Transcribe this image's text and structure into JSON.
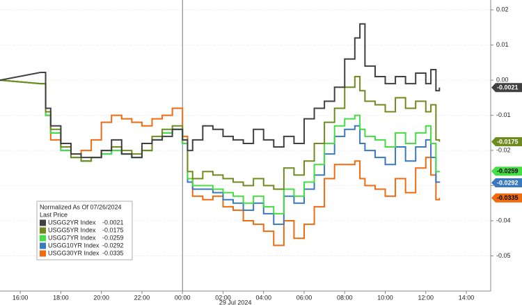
{
  "chart_data": {
    "type": "line",
    "x": [
      15,
      17,
      17.25,
      17.5,
      18,
      18.5,
      19,
      19.5,
      20,
      20.5,
      21,
      21.5,
      22,
      22.5,
      23,
      23.5,
      24,
      24.25,
      24.5,
      25,
      25.5,
      26,
      26.5,
      27,
      27.5,
      28,
      28.5,
      29,
      29.5,
      30,
      30.5,
      31,
      31.5,
      32,
      32.5,
      32.75,
      33,
      33.5,
      34,
      34.5,
      35,
      35.5,
      36,
      36.25,
      36.5,
      36.67
    ],
    "series": [
      {
        "name": "USGG2YR Index",
        "color": "#404040",
        "label_color": "#ffffff",
        "values": [
          0,
          0.0022,
          -0.008,
          -0.013,
          -0.018,
          -0.021,
          -0.022,
          -0.022,
          -0.02,
          -0.017,
          -0.021,
          -0.022,
          -0.018,
          -0.017,
          -0.016,
          -0.014,
          -0.017,
          -0.02,
          -0.017,
          -0.013,
          -0.014,
          -0.016,
          -0.017,
          -0.018,
          -0.014,
          -0.017,
          -0.019,
          -0.016,
          -0.018,
          -0.011,
          -0.008,
          -0.006,
          -0.002,
          0.006,
          0.012,
          0.016,
          0.004,
          0.001,
          -0.001,
          0.001,
          -0.001,
          0.002,
          -0.001,
          0.003,
          -0.003,
          -0.0021
        ]
      },
      {
        "name": "USGG5YR Index",
        "color": "#6e8b1e",
        "label_color": "#ffffff",
        "values": [
          0,
          -0.001,
          -0.009,
          -0.014,
          -0.019,
          -0.022,
          -0.023,
          -0.022,
          -0.02,
          -0.019,
          -0.02,
          -0.021,
          -0.02,
          -0.016,
          -0.014,
          -0.013,
          -0.017,
          -0.026,
          -0.028,
          -0.026,
          -0.027,
          -0.028,
          -0.029,
          -0.03,
          -0.028,
          -0.03,
          -0.031,
          -0.025,
          -0.027,
          -0.023,
          -0.018,
          -0.012,
          -0.008,
          -0.002,
          0.001,
          -0.003,
          -0.006,
          -0.007,
          -0.009,
          -0.005,
          -0.008,
          -0.006,
          -0.009,
          -0.007,
          -0.017,
          -0.0175
        ]
      },
      {
        "name": "USGG7YR Index",
        "color": "#44dd44",
        "label_color": "#000000",
        "values": [
          0,
          -0.001,
          -0.01,
          -0.015,
          -0.02,
          -0.022,
          -0.023,
          -0.022,
          -0.021,
          -0.02,
          -0.021,
          -0.022,
          -0.02,
          -0.017,
          -0.015,
          -0.014,
          -0.018,
          -0.028,
          -0.03,
          -0.03,
          -0.031,
          -0.032,
          -0.033,
          -0.035,
          -0.033,
          -0.036,
          -0.038,
          -0.031,
          -0.033,
          -0.029,
          -0.024,
          -0.018,
          -0.013,
          -0.011,
          -0.01,
          -0.014,
          -0.016,
          -0.017,
          -0.019,
          -0.015,
          -0.018,
          -0.015,
          -0.013,
          -0.018,
          -0.026,
          -0.0259
        ]
      },
      {
        "name": "USGG10YR Index",
        "color": "#3a78c0",
        "label_color": "#ffffff",
        "values": [
          0,
          -0.001,
          -0.01,
          -0.015,
          -0.02,
          -0.022,
          -0.023,
          -0.022,
          -0.021,
          -0.02,
          -0.021,
          -0.022,
          -0.02,
          -0.017,
          -0.015,
          -0.014,
          -0.018,
          -0.029,
          -0.031,
          -0.031,
          -0.032,
          -0.034,
          -0.035,
          -0.037,
          -0.035,
          -0.038,
          -0.041,
          -0.033,
          -0.035,
          -0.031,
          -0.027,
          -0.021,
          -0.016,
          -0.014,
          -0.013,
          -0.018,
          -0.02,
          -0.022,
          -0.024,
          -0.019,
          -0.023,
          -0.019,
          -0.017,
          -0.022,
          -0.029,
          -0.0292
        ]
      },
      {
        "name": "USGG30YR Index",
        "color": "#f06a10",
        "label_color": "#000000",
        "values": [
          0,
          -0.001,
          -0.01,
          -0.017,
          -0.019,
          -0.021,
          -0.02,
          -0.017,
          -0.012,
          -0.01,
          -0.011,
          -0.012,
          -0.013,
          -0.011,
          -0.01,
          -0.008,
          -0.016,
          -0.028,
          -0.033,
          -0.034,
          -0.033,
          -0.036,
          -0.037,
          -0.04,
          -0.041,
          -0.043,
          -0.047,
          -0.04,
          -0.045,
          -0.041,
          -0.036,
          -0.028,
          -0.024,
          -0.024,
          -0.023,
          -0.028,
          -0.03,
          -0.031,
          -0.033,
          -0.028,
          -0.032,
          -0.025,
          -0.022,
          -0.027,
          -0.034,
          -0.0335
        ]
      }
    ],
    "xlim": [
      15,
      39.2
    ],
    "xticks": [
      {
        "value": 16,
        "label": "16:00"
      },
      {
        "value": 18,
        "label": "18:00"
      },
      {
        "value": 20,
        "label": "20:00"
      },
      {
        "value": 22,
        "label": "22:00"
      },
      {
        "value": 24,
        "label": "00:00"
      },
      {
        "value": 26,
        "label": "02:00"
      },
      {
        "value": 28,
        "label": "04:00"
      },
      {
        "value": 30,
        "label": "06:00"
      },
      {
        "value": 32,
        "label": "08:00"
      },
      {
        "value": 34,
        "label": "10:00"
      },
      {
        "value": 36,
        "label": "12:00"
      },
      {
        "value": 38,
        "label": "14:00"
      }
    ],
    "ylim": [
      -0.06,
      0.0228
    ],
    "yticks": [
      0.02,
      0.01,
      {
        "value": 0,
        "label": "0.00"
      },
      -0.01,
      -0.02,
      -0.03,
      -0.04,
      -0.05
    ],
    "date_annotation": {
      "text": "29 Jul 2024",
      "x": 24
    },
    "legend": {
      "title": "Normalized As Of 07/26/2024",
      "subtitle": "Last Price",
      "position": "lower left"
    },
    "grid": true
  }
}
